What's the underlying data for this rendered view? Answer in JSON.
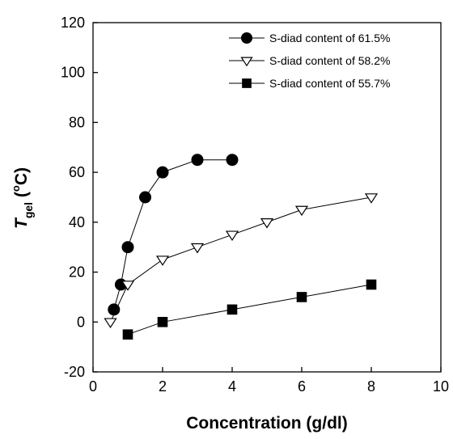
{
  "chart_data": {
    "type": "scatter",
    "xlabel": "Concentration (g/dl)",
    "ylabel": {
      "main": "T",
      "subscript": "gel",
      "unit_prefix": " (",
      "unit_superscript": "o",
      "unit_suffix": "C)"
    },
    "xlim": [
      0,
      10
    ],
    "ylim": [
      -20,
      120
    ],
    "x_ticks": [
      "0",
      "2",
      "4",
      "6",
      "8",
      "10"
    ],
    "y_ticks": [
      "-20",
      "0",
      "20",
      "40",
      "60",
      "80",
      "100",
      "120"
    ],
    "grid": false,
    "legend_position": "top-right",
    "series": [
      {
        "name": "S-diad content of 61.5%",
        "marker": "filled-circle",
        "color": "#000000",
        "x": [
          0.6,
          0.8,
          1.0,
          1.5,
          2.0,
          3.0,
          4.0
        ],
        "y": [
          5,
          15,
          30,
          50,
          60,
          65,
          65
        ]
      },
      {
        "name": "S-diad content of 58.2%",
        "marker": "open-triangle-down",
        "color": "#000000",
        "x": [
          0.5,
          1.0,
          2.0,
          3.0,
          4.0,
          5.0,
          6.0,
          8.0
        ],
        "y": [
          0,
          15,
          25,
          30,
          35,
          40,
          45,
          50
        ]
      },
      {
        "name": "S-diad content of 55.7%",
        "marker": "filled-square",
        "color": "#000000",
        "x": [
          1.0,
          2.0,
          4.0,
          6.0,
          8.0
        ],
        "y": [
          -5,
          0,
          5,
          10,
          15
        ]
      }
    ]
  }
}
